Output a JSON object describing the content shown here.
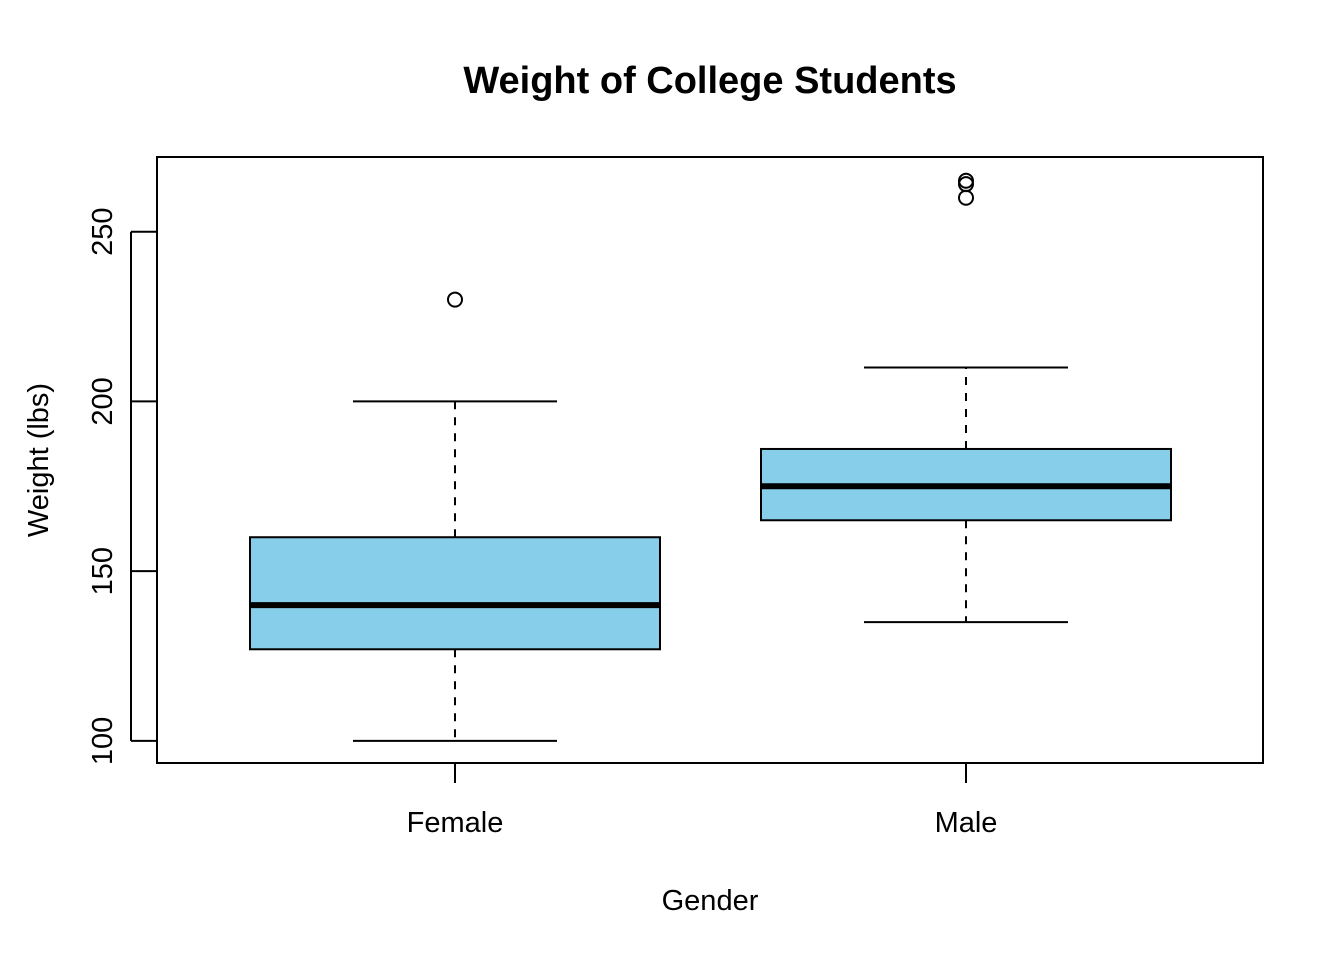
{
  "chart_data": {
    "type": "boxplot",
    "title": "Weight of College Students",
    "xlabel": "Gender",
    "ylabel": "Weight (lbs)",
    "ylim": [
      93.5,
      272
    ],
    "yticks": [
      100,
      150,
      200,
      250
    ],
    "box_color": "#87CEEB",
    "grid": false,
    "categories": [
      "Female",
      "Male"
    ],
    "boxes": [
      {
        "name": "Female",
        "whisker_low": 100,
        "q1": 127,
        "median": 140,
        "q3": 160,
        "whisker_high": 200,
        "outliers": [
          230
        ]
      },
      {
        "name": "Male",
        "whisker_low": 135,
        "q1": 165,
        "median": 175,
        "q3": 186,
        "whisker_high": 210,
        "outliers": [
          260,
          264,
          265
        ]
      }
    ]
  }
}
